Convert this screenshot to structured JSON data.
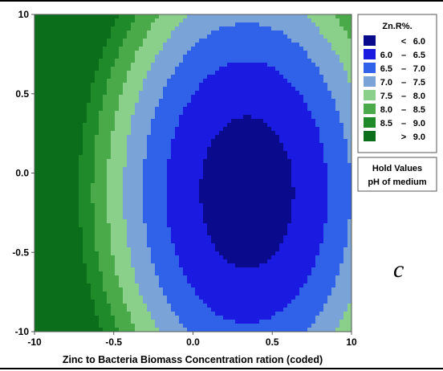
{
  "panel_letter": "c",
  "hold_box": {
    "line1": "Hold Values",
    "line2": "pH of medium"
  },
  "chart_data": {
    "type": "contour",
    "xlabel": "Zinc to Bacteria Biomass Concentration ration (coded)",
    "ylabel": "",
    "x_ticks": [
      "-10",
      "-0.5",
      "0.0",
      "0.5",
      "10"
    ],
    "y_ticks": [
      "10",
      "0.5",
      "0.0",
      "-0.5",
      "-10"
    ],
    "xlim": [
      -1,
      1
    ],
    "ylim": [
      -1,
      1
    ],
    "legend_title": "Zn.R%.",
    "legend_placement": "right",
    "levels": [
      {
        "label": [
          "",
          "<",
          "6.0"
        ],
        "color": "#0a0a8c"
      },
      {
        "label": [
          "6.0",
          "–",
          "6.5"
        ],
        "color": "#1a1ae0"
      },
      {
        "label": [
          "6.5",
          "–",
          "7.0"
        ],
        "color": "#2f62e8"
      },
      {
        "label": [
          "7.0",
          "–",
          "7.5"
        ],
        "color": "#7aa4d8"
      },
      {
        "label": [
          "7.5",
          "–",
          "8.0"
        ],
        "color": "#8ad08a"
      },
      {
        "label": [
          "8.0",
          "–",
          "8.5"
        ],
        "color": "#4aaa4a"
      },
      {
        "label": [
          "8.5",
          "–",
          "9.0"
        ],
        "color": "#1f8a2a"
      },
      {
        "label": [
          "",
          ">",
          "9.0"
        ],
        "color": "#0a6e1a"
      }
    ],
    "model": {
      "x0": 0.34,
      "y0": -0.12,
      "z0": 5.75,
      "ax": 2.9,
      "ay": 1.1
    }
  }
}
